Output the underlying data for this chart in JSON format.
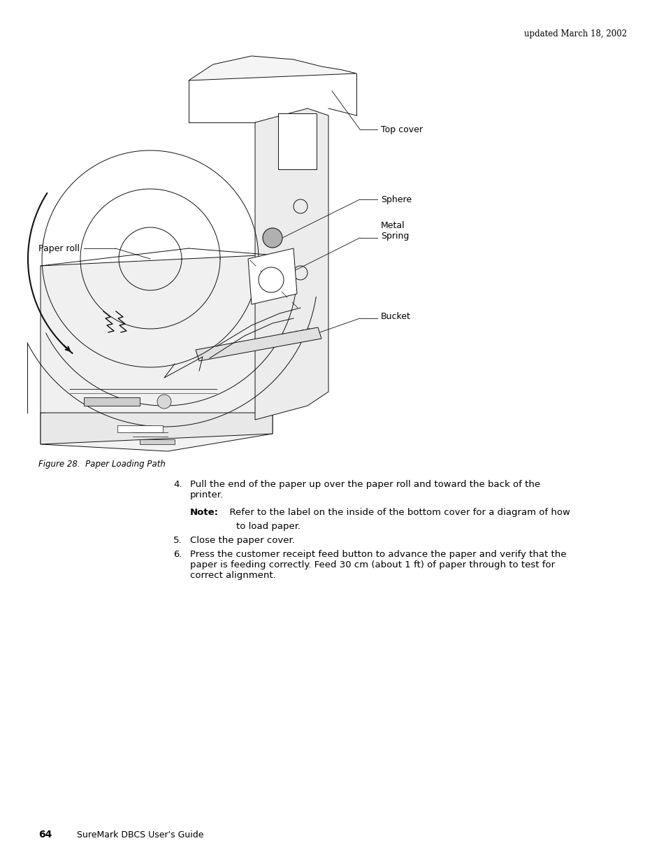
{
  "page_width": 9.54,
  "page_height": 12.35,
  "dpi": 100,
  "background_color": "#ffffff",
  "header_text": "updated March 18, 2002",
  "figure_caption": "Figure 28.  Paper Loading Path",
  "footer_page_num": "64",
  "footer_text": "SureMark DBCS User's Guide",
  "label_top_cover": "Top cover",
  "label_sphere": "Sphere",
  "label_metal_spring": "Metal\nSpring",
  "label_bucket": "Bucket",
  "label_paper_roll": "Paper roll",
  "item4_text": "Pull the end of the paper up over the paper roll and toward the back of the\nprinter.",
  "note_bold": "Note:",
  "note_text": "  Refer to the label on the inside of the bottom cover for a diagram of how\n        to load paper.",
  "item5_text": "Close the paper cover.",
  "item6_text": "Press the customer receipt feed button to advance the paper and verify that the\npaper is feeding correctly. Feed 30 cm (about 1 ft) of paper through to test for\ncorrect alignment."
}
